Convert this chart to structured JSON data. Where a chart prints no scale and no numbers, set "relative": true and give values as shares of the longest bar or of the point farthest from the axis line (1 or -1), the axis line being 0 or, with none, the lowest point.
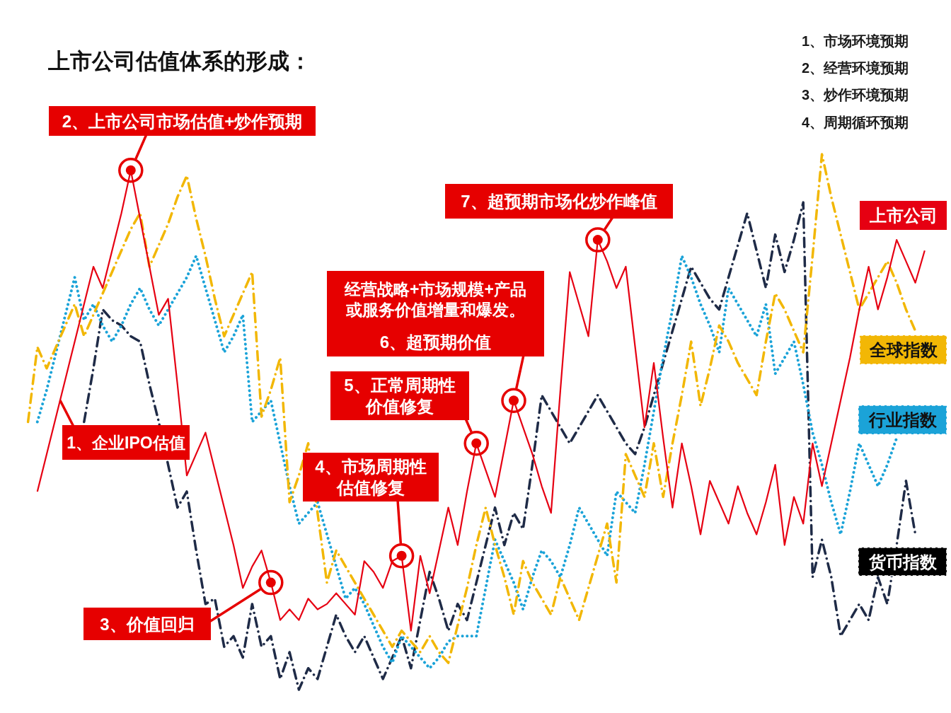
{
  "chart_data": {
    "type": "line",
    "relative": true,
    "title": "上市公司估值体系的形成：",
    "categories": [
      null,
      null,
      null,
      null,
      null,
      null,
      null,
      null,
      null,
      null,
      null,
      null,
      null,
      null,
      null,
      null,
      null,
      null,
      null,
      null,
      null,
      null,
      null,
      null,
      null,
      null,
      null,
      null,
      null,
      null,
      null,
      null,
      null,
      null,
      null,
      null,
      null,
      null,
      null,
      null,
      null,
      null,
      null,
      null,
      null,
      null,
      null,
      null,
      null,
      null,
      null,
      null,
      null,
      null,
      null,
      null,
      null,
      null,
      null,
      null,
      null,
      null,
      null,
      null,
      null,
      null,
      null,
      null,
      null,
      null,
      null,
      null,
      null,
      null,
      null,
      null,
      null,
      null,
      null,
      null,
      null,
      null,
      null,
      null,
      null,
      null,
      null,
      null,
      null,
      null,
      null,
      null,
      null,
      null,
      null,
      null,
      null
    ],
    "series": [
      {
        "name": "上市公司",
        "color": "#e60012",
        "line_style": "solid",
        "values": [
          null,
          0.37,
          0.44,
          0.51,
          0.58,
          0.65,
          0.72,
          0.79,
          0.75,
          0.82,
          0.89,
          0.97,
          0.88,
          0.79,
          0.7,
          0.73,
          0.57,
          0.4,
          0.44,
          0.48,
          0.41,
          0.34,
          0.27,
          0.19,
          0.23,
          0.26,
          0.2,
          0.13,
          0.15,
          0.13,
          0.17,
          0.15,
          0.16,
          0.18,
          0.16,
          0.14,
          0.24,
          0.22,
          0.19,
          0.24,
          0.25,
          0.11,
          0.25,
          0.18,
          0.26,
          0.34,
          0.27,
          0.37,
          0.46,
          0.41,
          0.36,
          0.45,
          0.54,
          0.49,
          0.44,
          0.38,
          0.33,
          0.56,
          0.78,
          0.72,
          0.66,
          0.84,
          0.8,
          0.75,
          0.79,
          0.64,
          0.49,
          0.61,
          0.47,
          0.34,
          0.46,
          0.38,
          0.29,
          0.39,
          0.35,
          0.31,
          0.38,
          0.33,
          0.29,
          0.35,
          0.42,
          0.27,
          0.36,
          0.31,
          0.46,
          0.38,
          0.46,
          0.54,
          0.62,
          0.71,
          0.79,
          0.71,
          0.77,
          0.84,
          0.8,
          0.76,
          0.82
        ]
      },
      {
        "name": "全球指数",
        "color": "#f2b705",
        "line_style": "dashdot",
        "values": [
          0.5,
          0.64,
          0.6,
          0.64,
          0.68,
          0.72,
          0.66,
          0.7,
          0.74,
          0.78,
          0.82,
          0.86,
          0.89,
          0.79,
          0.83,
          0.87,
          0.92,
          0.96,
          0.88,
          0.81,
          0.73,
          0.66,
          0.7,
          0.74,
          0.78,
          0.51,
          0.56,
          0.62,
          0.35,
          0.4,
          0.46,
          0.33,
          0.2,
          0.26,
          0.23,
          0.2,
          0.17,
          0.14,
          0.11,
          0.08,
          0.11,
          0.09,
          0.07,
          0.1,
          0.07,
          0.05,
          0.12,
          0.19,
          0.27,
          0.34,
          0.27,
          0.21,
          0.14,
          0.24,
          0.2,
          0.17,
          0.14,
          0.21,
          0.17,
          0.13,
          0.19,
          0.25,
          0.31,
          0.2,
          0.44,
          0.4,
          0.36,
          0.46,
          0.36,
          0.46,
          0.55,
          0.65,
          0.53,
          0.6,
          0.68,
          0.65,
          0.61,
          0.58,
          0.55,
          0.65,
          0.74,
          0.71,
          0.67,
          0.63,
          0.81,
          1,
          0.92,
          0.85,
          0.78,
          0.71,
          0.74,
          0.77,
          0.8,
          0.76,
          0.71,
          0.67,
          null
        ]
      },
      {
        "name": "行业指数",
        "color": "#1ba3d8",
        "line_style": "dotted",
        "values": [
          null,
          0.5,
          0.56,
          0.63,
          0.7,
          0.77,
          0.69,
          0.72,
          0.68,
          0.65,
          0.68,
          0.72,
          0.75,
          0.71,
          0.68,
          0.71,
          0.74,
          0.77,
          0.81,
          0.75,
          0.69,
          0.63,
          0.66,
          0.7,
          0.5,
          0.52,
          0.54,
          0.46,
          0.38,
          0.31,
          0.33,
          0.35,
          0.29,
          0.23,
          0.17,
          0.19,
          0.16,
          0.12,
          0.08,
          0.05,
          0.1,
          0.08,
          0.06,
          0.04,
          0.06,
          0.09,
          0.1,
          0.1,
          0.1,
          0.19,
          0.28,
          0.24,
          0.2,
          0.15,
          0.21,
          0.26,
          0.24,
          0.21,
          0.27,
          0.34,
          0.31,
          0.28,
          0.25,
          0.37,
          0.35,
          0.33,
          0.42,
          0.52,
          0.62,
          0.71,
          0.81,
          0.77,
          0.72,
          0.68,
          0.63,
          0.75,
          0.72,
          0.69,
          0.66,
          0.72,
          0.59,
          0.62,
          0.65,
          0.57,
          0.48,
          0.42,
          0.35,
          0.29,
          0.37,
          0.46,
          0.42,
          0.38,
          0.42,
          0.47,
          null,
          null,
          null
        ]
      },
      {
        "name": "货币指数",
        "color": "#1f2b47",
        "line_style": "dashdot",
        "values": [
          null,
          null,
          null,
          null,
          null,
          null,
          0.5,
          0.6,
          0.71,
          0.69,
          0.68,
          0.66,
          0.65,
          0.57,
          0.5,
          0.42,
          0.34,
          0.37,
          0.26,
          0.16,
          0.17,
          0.08,
          0.1,
          0.06,
          0.16,
          0.08,
          0.1,
          0.02,
          0.07,
          0,
          0.04,
          0.02,
          0.08,
          0.14,
          0.1,
          0.07,
          0.1,
          0.06,
          0.02,
          0.06,
          0.1,
          0.04,
          0.13,
          0.22,
          0.17,
          0.11,
          0.16,
          0.13,
          0.2,
          0.27,
          0.34,
          0.27,
          0.33,
          0.3,
          0.42,
          0.55,
          0.52,
          0.49,
          0.46,
          0.49,
          0.52,
          0.55,
          0.52,
          0.49,
          0.46,
          0.44,
          0.49,
          0.55,
          0.61,
          0.67,
          0.73,
          0.79,
          0.76,
          0.73,
          0.71,
          0.77,
          0.83,
          0.89,
          0.82,
          0.75,
          0.85,
          0.78,
          0.84,
          0.91,
          0.21,
          0.28,
          0.21,
          0.1,
          0.13,
          0.16,
          0.13,
          0.21,
          0.16,
          0.27,
          0.39,
          0.29,
          null
        ]
      }
    ],
    "annotations": [
      "1、市场环境预期",
      "2、经营环境预期",
      "3、炒作环境预期",
      "4、周期循环预期",
      "1、企业IPO估值",
      "2、上市公司市场估值+炒作预期",
      "3、价值回归",
      "4、市场周期性估值修复",
      "5、正常周期性价值修复",
      "经营战略+市场规模+产品或服务价值增量和爆发。",
      "6、超预期价值",
      "7、超预期市场化炒作峰值"
    ]
  }
}
